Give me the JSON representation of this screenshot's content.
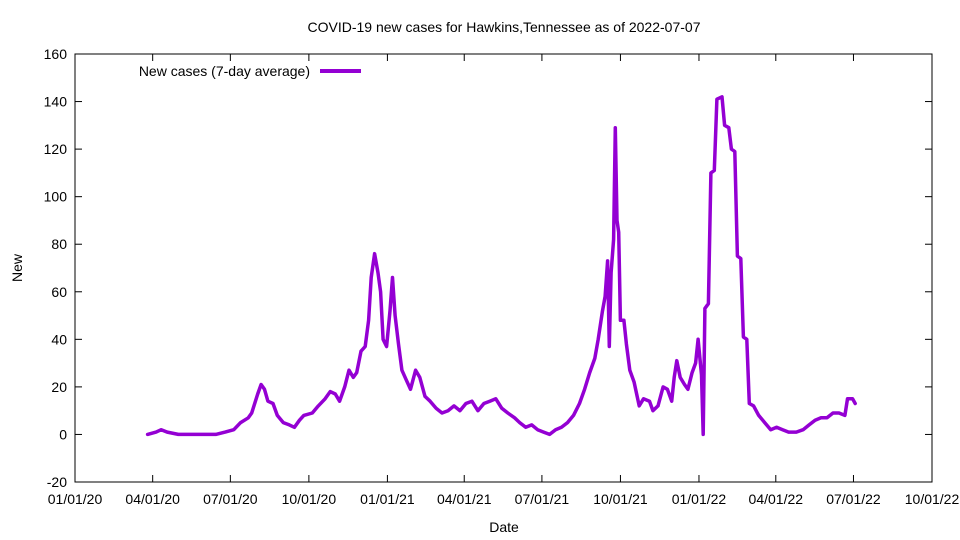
{
  "chart_data": {
    "type": "line",
    "title": "COVID-19 new cases for Hawkins,Tennessee as of 2022-07-07",
    "xlabel": "Date",
    "ylabel": "New",
    "xlim": [
      "2020-01-01",
      "2022-10-01"
    ],
    "ylim": [
      -20,
      160
    ],
    "x_ticks": [
      "01/01/20",
      "04/01/20",
      "07/01/20",
      "10/01/20",
      "01/01/21",
      "04/01/21",
      "07/01/21",
      "10/01/21",
      "01/01/22",
      "04/01/22",
      "07/01/22",
      "10/01/22"
    ],
    "x_tick_dates": [
      "2020-01-01",
      "2020-04-01",
      "2020-07-01",
      "2020-10-01",
      "2021-01-01",
      "2021-04-01",
      "2021-07-01",
      "2021-10-01",
      "2022-01-01",
      "2022-04-01",
      "2022-07-01",
      "2022-10-01"
    ],
    "y_ticks": [
      -20,
      0,
      20,
      40,
      60,
      80,
      100,
      120,
      140,
      160
    ],
    "grid": false,
    "legend_position": "top-left",
    "series": [
      {
        "name": "New cases (7-day average)",
        "color": "#9400d3",
        "points": [
          [
            "2020-03-26",
            0
          ],
          [
            "2020-04-05",
            1
          ],
          [
            "2020-04-11",
            2
          ],
          [
            "2020-04-18",
            1
          ],
          [
            "2020-05-01",
            0
          ],
          [
            "2020-05-20",
            0
          ],
          [
            "2020-06-05",
            0
          ],
          [
            "2020-06-14",
            0
          ],
          [
            "2020-06-25",
            1
          ],
          [
            "2020-07-05",
            2
          ],
          [
            "2020-07-13",
            5
          ],
          [
            "2020-07-22",
            7
          ],
          [
            "2020-07-26",
            9
          ],
          [
            "2020-08-02",
            17
          ],
          [
            "2020-08-06",
            21
          ],
          [
            "2020-08-10",
            19
          ],
          [
            "2020-08-14",
            14
          ],
          [
            "2020-08-20",
            13
          ],
          [
            "2020-08-25",
            8
          ],
          [
            "2020-09-01",
            5
          ],
          [
            "2020-09-08",
            4
          ],
          [
            "2020-09-14",
            3
          ],
          [
            "2020-09-20",
            6
          ],
          [
            "2020-09-25",
            8
          ],
          [
            "2020-10-05",
            9
          ],
          [
            "2020-10-12",
            12
          ],
          [
            "2020-10-20",
            15
          ],
          [
            "2020-10-26",
            18
          ],
          [
            "2020-11-01",
            17
          ],
          [
            "2020-11-06",
            14
          ],
          [
            "2020-11-12",
            20
          ],
          [
            "2020-11-17",
            27
          ],
          [
            "2020-11-22",
            24
          ],
          [
            "2020-11-26",
            26
          ],
          [
            "2020-12-01",
            35
          ],
          [
            "2020-12-06",
            37
          ],
          [
            "2020-12-10",
            48
          ],
          [
            "2020-12-13",
            66
          ],
          [
            "2020-12-17",
            76
          ],
          [
            "2020-12-21",
            68
          ],
          [
            "2020-12-24",
            60
          ],
          [
            "2020-12-27",
            40
          ],
          [
            "2020-12-31",
            37
          ],
          [
            "2021-01-04",
            52
          ],
          [
            "2021-01-07",
            66
          ],
          [
            "2021-01-10",
            50
          ],
          [
            "2021-01-14",
            38
          ],
          [
            "2021-01-18",
            27
          ],
          [
            "2021-01-23",
            23
          ],
          [
            "2021-01-28",
            19
          ],
          [
            "2021-02-03",
            27
          ],
          [
            "2021-02-08",
            24
          ],
          [
            "2021-02-14",
            16
          ],
          [
            "2021-02-20",
            14
          ],
          [
            "2021-02-27",
            11
          ],
          [
            "2021-03-06",
            9
          ],
          [
            "2021-03-13",
            10
          ],
          [
            "2021-03-20",
            12
          ],
          [
            "2021-03-27",
            10
          ],
          [
            "2021-04-03",
            13
          ],
          [
            "2021-04-10",
            14
          ],
          [
            "2021-04-17",
            10
          ],
          [
            "2021-04-24",
            13
          ],
          [
            "2021-05-01",
            14
          ],
          [
            "2021-05-08",
            15
          ],
          [
            "2021-05-15",
            11
          ],
          [
            "2021-05-22",
            9
          ],
          [
            "2021-05-30",
            7
          ],
          [
            "2021-06-05",
            5
          ],
          [
            "2021-06-12",
            3
          ],
          [
            "2021-06-19",
            4
          ],
          [
            "2021-06-26",
            2
          ],
          [
            "2021-07-03",
            1
          ],
          [
            "2021-07-10",
            0
          ],
          [
            "2021-07-17",
            2
          ],
          [
            "2021-07-24",
            3
          ],
          [
            "2021-07-31",
            5
          ],
          [
            "2021-08-07",
            8
          ],
          [
            "2021-08-14",
            13
          ],
          [
            "2021-08-20",
            19
          ],
          [
            "2021-08-26",
            26
          ],
          [
            "2021-09-01",
            32
          ],
          [
            "2021-09-05",
            40
          ],
          [
            "2021-09-10",
            52
          ],
          [
            "2021-09-13",
            58
          ],
          [
            "2021-09-16",
            73
          ],
          [
            "2021-09-18",
            37
          ],
          [
            "2021-09-20",
            68
          ],
          [
            "2021-09-23",
            82
          ],
          [
            "2021-09-25",
            129
          ],
          [
            "2021-09-27",
            90
          ],
          [
            "2021-09-29",
            85
          ],
          [
            "2021-10-01",
            48
          ],
          [
            "2021-10-05",
            48
          ],
          [
            "2021-10-08",
            38
          ],
          [
            "2021-10-12",
            27
          ],
          [
            "2021-10-17",
            22
          ],
          [
            "2021-10-23",
            12
          ],
          [
            "2021-10-28",
            15
          ],
          [
            "2021-11-04",
            14
          ],
          [
            "2021-11-08",
            10
          ],
          [
            "2021-11-14",
            12
          ],
          [
            "2021-11-20",
            20
          ],
          [
            "2021-11-25",
            19
          ],
          [
            "2021-11-30",
            14
          ],
          [
            "2021-12-03",
            24
          ],
          [
            "2021-12-06",
            31
          ],
          [
            "2021-12-10",
            24
          ],
          [
            "2021-12-15",
            21
          ],
          [
            "2021-12-19",
            19
          ],
          [
            "2021-12-24",
            26
          ],
          [
            "2021-12-28",
            30
          ],
          [
            "2021-12-31",
            40
          ],
          [
            "2022-01-04",
            25
          ],
          [
            "2022-01-06",
            0
          ],
          [
            "2022-01-08",
            53
          ],
          [
            "2022-01-12",
            55
          ],
          [
            "2022-01-15",
            110
          ],
          [
            "2022-01-19",
            111
          ],
          [
            "2022-01-22",
            141
          ],
          [
            "2022-01-28",
            142
          ],
          [
            "2022-01-31",
            130
          ],
          [
            "2022-02-05",
            129
          ],
          [
            "2022-02-08",
            120
          ],
          [
            "2022-02-12",
            119
          ],
          [
            "2022-02-15",
            75
          ],
          [
            "2022-02-19",
            74
          ],
          [
            "2022-02-22",
            41
          ],
          [
            "2022-02-26",
            40
          ],
          [
            "2022-03-01",
            13
          ],
          [
            "2022-03-06",
            12
          ],
          [
            "2022-03-12",
            8
          ],
          [
            "2022-03-19",
            5
          ],
          [
            "2022-03-26",
            2
          ],
          [
            "2022-04-02",
            3
          ],
          [
            "2022-04-09",
            2
          ],
          [
            "2022-04-16",
            1
          ],
          [
            "2022-04-25",
            1
          ],
          [
            "2022-05-03",
            2
          ],
          [
            "2022-05-10",
            4
          ],
          [
            "2022-05-17",
            6
          ],
          [
            "2022-05-24",
            7
          ],
          [
            "2022-05-31",
            7
          ],
          [
            "2022-06-07",
            9
          ],
          [
            "2022-06-14",
            9
          ],
          [
            "2022-06-21",
            8
          ],
          [
            "2022-06-24",
            15
          ],
          [
            "2022-06-30",
            15
          ],
          [
            "2022-07-03",
            13
          ]
        ]
      }
    ]
  }
}
